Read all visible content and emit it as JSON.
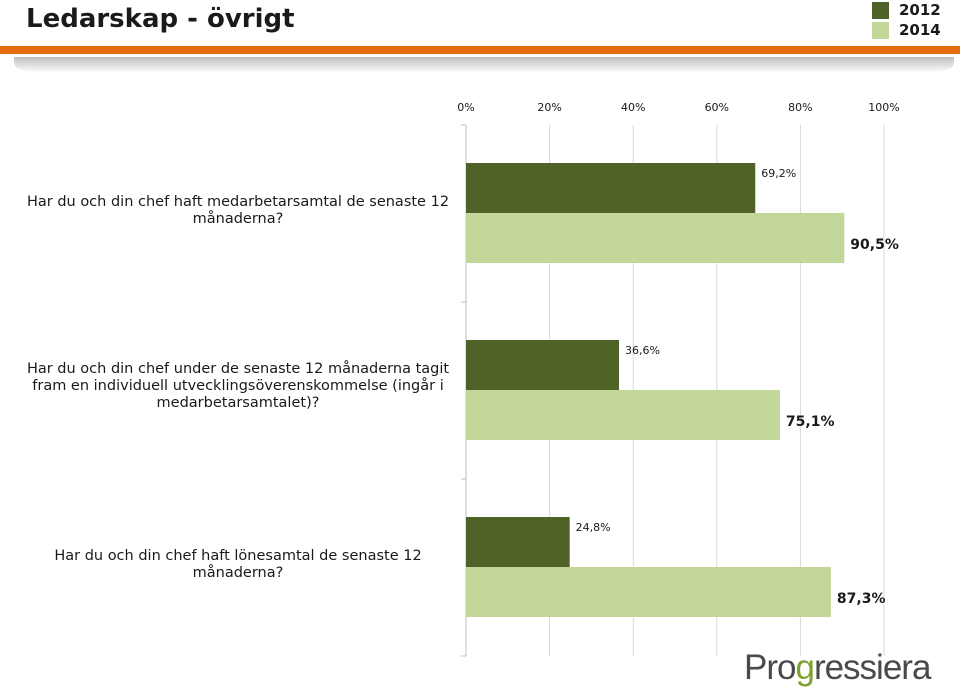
{
  "page": {
    "title": "Ledarskap - övrigt",
    "logo_text_part1": "Pro",
    "logo_text_accent": "g",
    "logo_text_part2": "ressiera"
  },
  "legend": [
    {
      "label": "2012",
      "color": "#4f6228"
    },
    {
      "label": "2014",
      "color": "#c4d79b"
    }
  ],
  "chart_data": {
    "type": "bar",
    "orientation": "horizontal",
    "categories": [
      "Har du och din chef haft medarbetarsamtal de senaste 12 månaderna?",
      "Har du och din chef under de senaste 12 månaderna tagit fram en individuell utvecklingsöverenskommelse (ingår i medarbetarsamtalet)?",
      "Har du och din chef haft lönesamtal de senaste 12 månaderna?"
    ],
    "series": [
      {
        "name": "2012",
        "values": [
          69.2,
          36.6,
          24.8
        ],
        "labels": [
          "69,2%",
          "36,6%",
          "24,8%"
        ],
        "color": "#4f6228"
      },
      {
        "name": "2014",
        "values": [
          90.5,
          75.1,
          87.3
        ],
        "labels": [
          "90,5%",
          "75,1%",
          "87,3%"
        ],
        "color": "#c4d79b"
      }
    ],
    "xlim": [
      0,
      100
    ],
    "xticks": [
      "0%",
      "20%",
      "40%",
      "60%",
      "80%",
      "100%"
    ],
    "grid": true,
    "legend_position": "top-right"
  }
}
